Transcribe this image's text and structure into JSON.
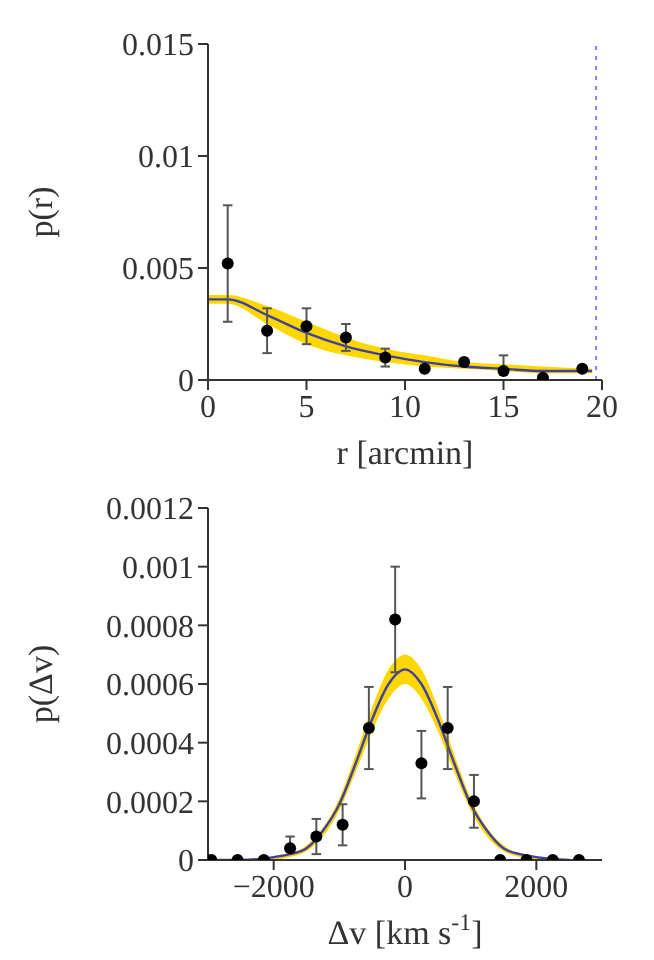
{
  "chart_data": [
    {
      "type": "scatter",
      "xlabel": "r [arcmin]",
      "ylabel": "p(r)",
      "xlim": [
        0,
        20
      ],
      "ylim": [
        0,
        0.015
      ],
      "xticks": [
        0,
        5,
        10,
        15,
        20
      ],
      "yticks": [
        0,
        0.005,
        0.01,
        0.015
      ],
      "marker": "circle",
      "ref_lines": [
        {
          "axis": "x",
          "value": 19.7,
          "color": "#8080ff",
          "line_style": "dotted"
        }
      ],
      "series": [
        {
          "type": "line",
          "marker": "none",
          "color": "#4040a0",
          "x": [
            0,
            1,
            3,
            5,
            7,
            9,
            11,
            13,
            15,
            17,
            19.5
          ],
          "values": [
            0.0036,
            0.0036,
            0.0029,
            0.0021,
            0.0015,
            0.0011,
            0.0008,
            0.0006,
            0.0005,
            0.0004,
            0.0004
          ],
          "lower": [
            0.0034,
            0.0034,
            0.0025,
            0.0016,
            0.0011,
            0.0008,
            0.0006,
            0.0005,
            0.0004,
            0.0003,
            0.0003
          ],
          "upper": [
            0.0038,
            0.0038,
            0.0033,
            0.0026,
            0.0019,
            0.0014,
            0.0011,
            0.0008,
            0.0007,
            0.0006,
            0.0005
          ]
        },
        {
          "color": "#000000",
          "x": [
            1,
            3,
            5,
            7,
            9,
            11,
            13,
            15,
            17,
            19
          ],
          "values": [
            0.0052,
            0.0022,
            0.0024,
            0.0019,
            0.001,
            0.0005,
            0.0008,
            0.0004,
            0.0001,
            0.0005
          ],
          "errors": [
            [
              0.0026,
              0.0078
            ],
            [
              0.0012,
              0.0032
            ],
            [
              0.0016,
              0.0032
            ],
            [
              0.0013,
              0.0025
            ],
            [
              0.0006,
              0.0014
            ],
            null,
            null,
            [
              0.0004,
              0.0011
            ],
            null,
            null
          ]
        }
      ]
    },
    {
      "type": "scatter",
      "xlabel": "Δv [km s$^{-1}$]",
      "ylabel": "p(Δv)",
      "xlim": [
        -3000,
        3000
      ],
      "ylim": [
        0,
        0.0012
      ],
      "xticks": [
        -2000,
        0,
        2000
      ],
      "yticks": [
        0,
        0.0002,
        0.0004,
        0.0006,
        0.0008,
        0.001,
        0.0012
      ],
      "marker": "circle",
      "series": [
        {
          "type": "line",
          "marker": "none",
          "color": "#4040a0",
          "x": [
            -3000,
            -2500,
            -2000,
            -1750,
            -1500,
            -1250,
            -1000,
            -750,
            -500,
            -250,
            0,
            250,
            500,
            750,
            1000,
            1250,
            1500,
            1750,
            2000,
            2500
          ],
          "values": [
            0,
            0,
            1e-05,
            2e-05,
            4e-05,
            0.0001,
            0.00019,
            0.00033,
            0.00048,
            0.0006,
            0.00065,
            0.0006,
            0.00048,
            0.00033,
            0.00019,
            0.0001,
            4e-05,
            2e-05,
            1e-05,
            0
          ],
          "lower": [
            0,
            0,
            0,
            1e-05,
            3e-05,
            8e-05,
            0.00017,
            0.0003,
            0.00044,
            0.00055,
            0.0006,
            0.00055,
            0.00044,
            0.0003,
            0.00017,
            8e-05,
            3e-05,
            1e-05,
            0,
            0
          ],
          "upper": [
            0,
            0,
            1e-05,
            2e-05,
            5e-05,
            0.00011,
            0.00021,
            0.00036,
            0.00052,
            0.00065,
            0.0007,
            0.00065,
            0.00052,
            0.00036,
            0.00021,
            0.00011,
            5e-05,
            2e-05,
            1e-05,
            0
          ]
        },
        {
          "color": "#000000",
          "x": [
            -2950,
            -2550,
            -2150,
            -1750,
            -1350,
            -950,
            -550,
            -150,
            250,
            650,
            1050,
            1450,
            1850,
            2250,
            2650
          ],
          "values": [
            0,
            0,
            0,
            4e-05,
            8e-05,
            0.00012,
            0.00045,
            0.00082,
            0.00033,
            0.00045,
            0.0002,
            0,
            0,
            0,
            0
          ],
          "errors": [
            null,
            null,
            null,
            [
              4e-05,
              8e-05
            ],
            [
              2e-05,
              0.00014
            ],
            [
              5e-05,
              0.00019
            ],
            [
              0.00031,
              0.00059
            ],
            [
              0.00064,
              0.001
            ],
            [
              0.00021,
              0.00044
            ],
            [
              0.00031,
              0.00059
            ],
            [
              0.00011,
              0.00029
            ],
            null,
            null,
            null,
            null
          ]
        }
      ]
    }
  ]
}
